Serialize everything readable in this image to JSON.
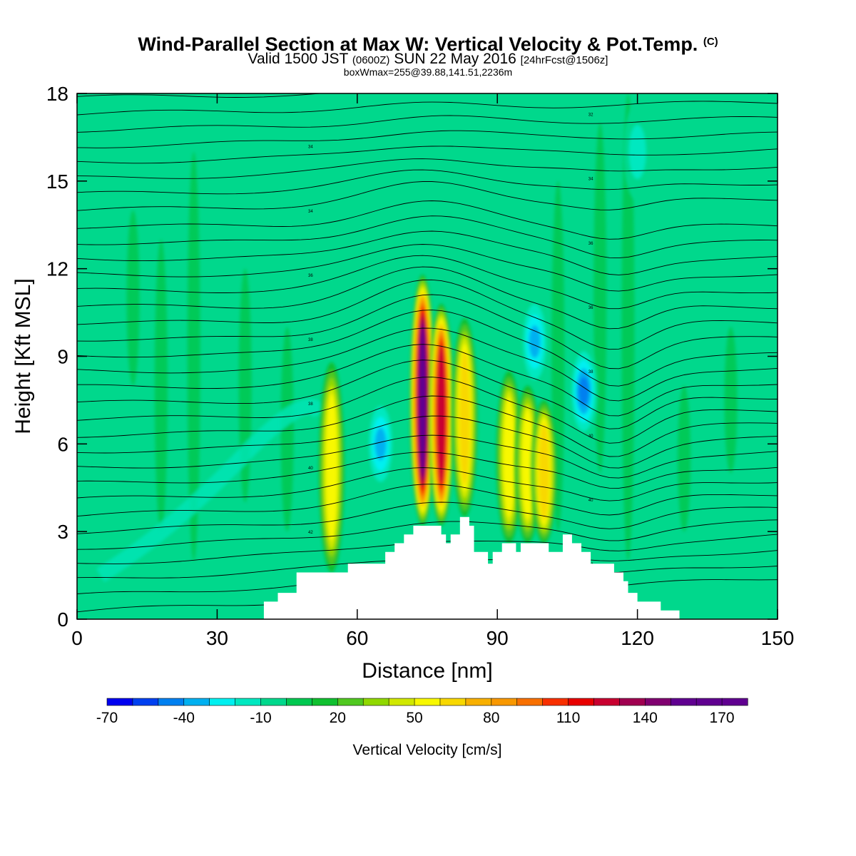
{
  "header": {
    "title": "Wind-Parallel Section at Max W: Vertical Velocity & Pot.Temp.",
    "title_tag": "(C)",
    "valid_prefix": "Valid 1500 JST",
    "valid_utc": "(0600Z)",
    "valid_date": "SUN 22 May 2016",
    "forecast": "[24hrFcst@1506z]",
    "boxwmax": "boxWmax=255@39.88,141.51,2236m"
  },
  "colors": {
    "background": "#00d88c",
    "terrain": "#ffffff",
    "contour": "#000000",
    "scale": [
      "#0000f0",
      "#0040f0",
      "#0080f0",
      "#00b0f0",
      "#00f0f0",
      "#00e8c0",
      "#00d88c",
      "#00c850",
      "#10c030",
      "#50c820",
      "#90d800",
      "#d0e800",
      "#f8f800",
      "#f8d800",
      "#f8b000",
      "#f89800",
      "#f87000",
      "#f83000",
      "#e80000",
      "#c80030",
      "#a00050",
      "#800070",
      "#600090"
    ]
  },
  "chart_data": {
    "type": "heatmap",
    "xlabel": "Distance [nm]",
    "ylabel": "Height [Kft MSL]",
    "xlim": [
      0,
      150
    ],
    "ylim": [
      0,
      18
    ],
    "xticks": [
      0,
      30,
      60,
      90,
      120,
      150
    ],
    "yticks": [
      0,
      3,
      6,
      9,
      12,
      15,
      18
    ],
    "colorbar": {
      "label": "Vertical Velocity [cm/s]",
      "min": -70,
      "max": 180,
      "step": 10,
      "tick_labels": [
        -70,
        -40,
        -10,
        20,
        50,
        80,
        110,
        140,
        170
      ]
    },
    "terrain_profile": [
      [
        40,
        0
      ],
      [
        40,
        0.6
      ],
      [
        43,
        0.6
      ],
      [
        43,
        0.9
      ],
      [
        47,
        0.9
      ],
      [
        47,
        1.6
      ],
      [
        58,
        1.6
      ],
      [
        58,
        1.9
      ],
      [
        66,
        1.9
      ],
      [
        66,
        2.3
      ],
      [
        68,
        2.3
      ],
      [
        68,
        2.6
      ],
      [
        70,
        2.6
      ],
      [
        70,
        2.9
      ],
      [
        72,
        2.9
      ],
      [
        72,
        3.2
      ],
      [
        78,
        3.2
      ],
      [
        78,
        2.9
      ],
      [
        79,
        2.9
      ],
      [
        79,
        2.6
      ],
      [
        80,
        2.6
      ],
      [
        80,
        2.9
      ],
      [
        82,
        2.9
      ],
      [
        82,
        3.5
      ],
      [
        84,
        3.5
      ],
      [
        84,
        3.2
      ],
      [
        85,
        3.2
      ],
      [
        85,
        2.3
      ],
      [
        88,
        2.3
      ],
      [
        88,
        1.9
      ],
      [
        89,
        1.9
      ],
      [
        89,
        2.3
      ],
      [
        91,
        2.3
      ],
      [
        91,
        2.6
      ],
      [
        94,
        2.6
      ],
      [
        94,
        2.3
      ],
      [
        95,
        2.3
      ],
      [
        95,
        2.6
      ],
      [
        101,
        2.6
      ],
      [
        101,
        2.3
      ],
      [
        104,
        2.3
      ],
      [
        104,
        2.9
      ],
      [
        106,
        2.9
      ],
      [
        106,
        2.6
      ],
      [
        108,
        2.6
      ],
      [
        108,
        2.3
      ],
      [
        110,
        2.3
      ],
      [
        110,
        1.9
      ],
      [
        115,
        1.9
      ],
      [
        115,
        1.6
      ],
      [
        117,
        1.6
      ],
      [
        117,
        1.3
      ],
      [
        118,
        1.3
      ],
      [
        118,
        0.9
      ],
      [
        120,
        0.9
      ],
      [
        120,
        0.6
      ],
      [
        125,
        0.6
      ],
      [
        125,
        0.3
      ],
      [
        129,
        0.3
      ],
      [
        129,
        0
      ]
    ],
    "updraft_cores": [
      {
        "x": 54.5,
        "y_base": 1.6,
        "y_top": 8.8,
        "w_max": 55
      },
      {
        "x": 74,
        "y_base": 3.2,
        "y_top": 11.8,
        "w_max": 150
      },
      {
        "x": 78,
        "y_base": 3.2,
        "y_top": 10.8,
        "w_max": 120
      },
      {
        "x": 83,
        "y_base": 3.5,
        "y_top": 10.3,
        "w_max": 60
      },
      {
        "x": 92.5,
        "y_base": 2.6,
        "y_top": 8.5,
        "w_max": 50
      },
      {
        "x": 96.5,
        "y_base": 2.6,
        "y_top": 8.0,
        "w_max": 50
      },
      {
        "x": 100,
        "y_base": 2.6,
        "y_top": 7.5,
        "w_max": 60
      }
    ],
    "downdraft_cores": [
      {
        "x": 65,
        "y": 6.0,
        "w_min": -40
      },
      {
        "x": 98,
        "y": 9.5,
        "w_min": -40
      },
      {
        "x": 108.5,
        "y": 7.8,
        "w_min": -50
      },
      {
        "x": 120,
        "y": 16.0,
        "w_min": -20
      }
    ],
    "theta_labels": [
      "44",
      "42",
      "42",
      "40",
      "40",
      "40",
      "38",
      "38",
      "38",
      "36",
      "36",
      "36",
      "34",
      "34",
      "34",
      "32",
      "32",
      "32",
      "30",
      "30",
      "30",
      "28",
      "28",
      "26",
      "26",
      "24",
      "24"
    ]
  }
}
